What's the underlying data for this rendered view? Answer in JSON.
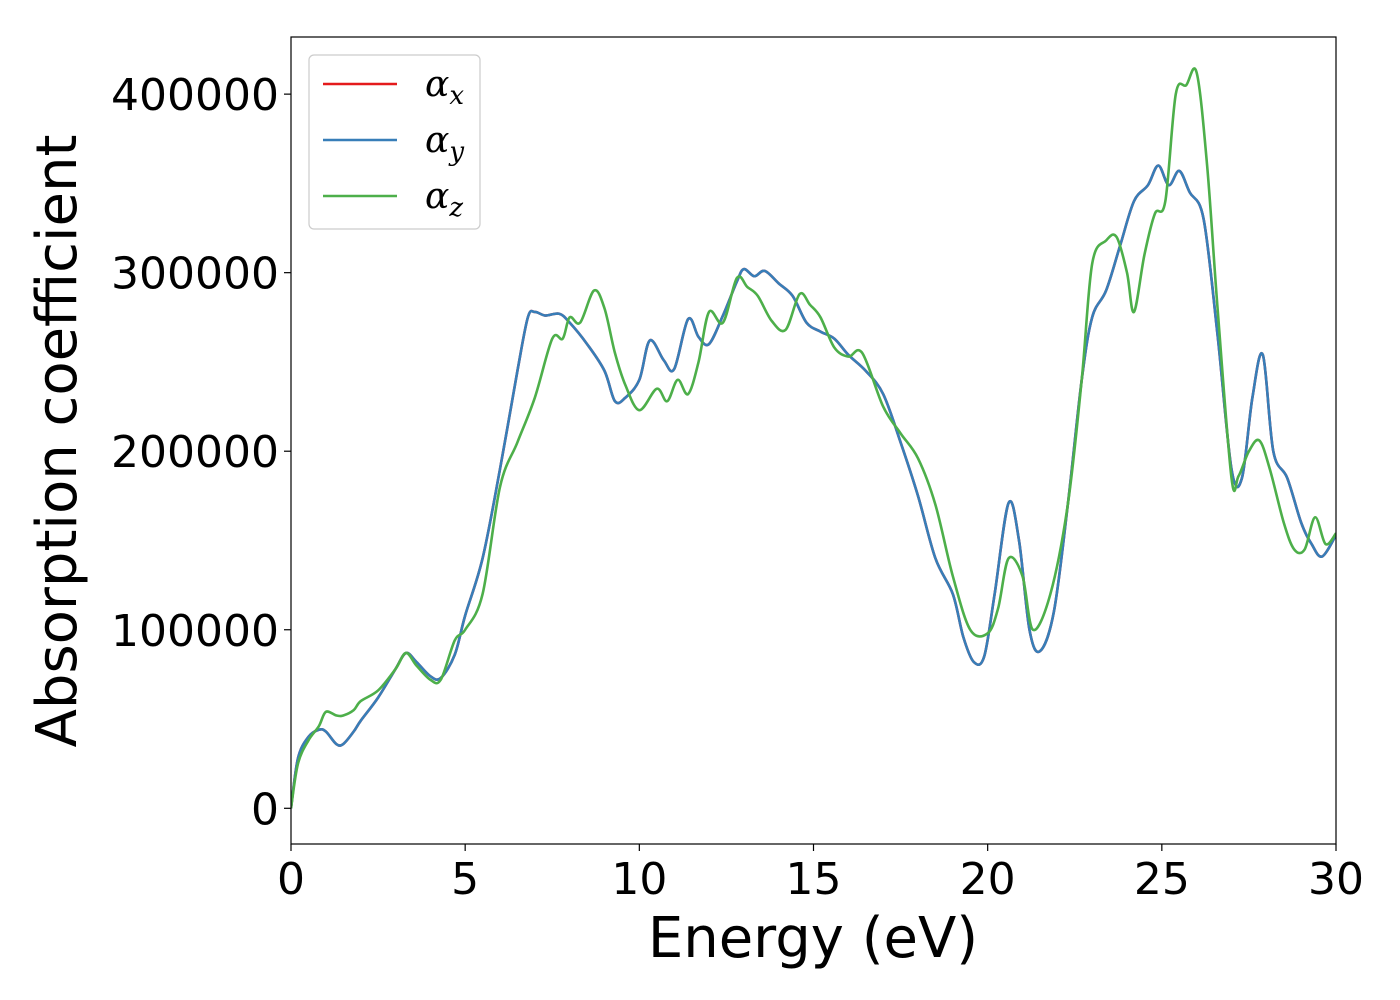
{
  "chart_data": {
    "type": "line",
    "xlabel": "Energy (eV)",
    "ylabel": "Absorption coefficient",
    "xlim": [
      0,
      30
    ],
    "ylim": [
      -20000,
      432000
    ],
    "xticks": [
      0,
      5,
      10,
      15,
      20,
      25,
      30
    ],
    "xtick_labels": [
      "0",
      "5",
      "10",
      "15",
      "20",
      "25",
      "30"
    ],
    "yticks": [
      0,
      100000,
      200000,
      300000,
      400000
    ],
    "ytick_labels": [
      "0",
      "100000",
      "200000",
      "300000",
      "400000"
    ],
    "grid": false,
    "legend": "top-left",
    "series": [
      {
        "name": "α_x",
        "legend_main": "α",
        "legend_sub": "x",
        "color": "#e41a1c",
        "x": [
          0,
          0.2,
          0.5,
          0.8,
          1.0,
          1.3,
          1.5,
          1.8,
          2.0,
          2.5,
          3.0,
          3.3,
          3.6,
          4.0,
          4.3,
          4.7,
          5.0,
          5.5,
          6.0,
          6.5,
          6.8,
          7.0,
          7.3,
          7.7,
          8.0,
          8.5,
          9.0,
          9.3,
          9.6,
          10.0,
          10.3,
          10.7,
          11.0,
          11.4,
          11.7,
          12.0,
          12.4,
          12.8,
          13.0,
          13.3,
          13.6,
          14.0,
          14.4,
          14.8,
          15.2,
          15.6,
          16.0,
          16.5,
          17.0,
          17.5,
          18.0,
          18.5,
          19.0,
          19.3,
          19.6,
          19.9,
          20.2,
          20.6,
          20.9,
          21.2,
          21.5,
          21.9,
          22.3,
          22.7,
          23.0,
          23.4,
          23.8,
          24.2,
          24.6,
          24.9,
          25.2,
          25.5,
          25.8,
          26.2,
          26.6,
          27.0,
          27.3,
          27.6,
          27.9,
          28.2,
          28.6,
          29.0,
          29.3,
          29.6,
          30.0
        ],
        "values": [
          0,
          28000,
          40000,
          44000,
          43000,
          36000,
          36000,
          43000,
          49000,
          62000,
          78000,
          87000,
          82000,
          74000,
          73000,
          86000,
          108000,
          140000,
          190000,
          245000,
          275000,
          278000,
          276000,
          277000,
          272000,
          260000,
          245000,
          228000,
          230000,
          240000,
          262000,
          251000,
          246000,
          274000,
          264000,
          260000,
          276000,
          295000,
          302000,
          298000,
          301000,
          294000,
          287000,
          272000,
          267000,
          263000,
          254000,
          245000,
          232000,
          205000,
          175000,
          140000,
          120000,
          96000,
          82000,
          85000,
          120000,
          171000,
          150000,
          100000,
          88000,
          110000,
          170000,
          240000,
          275000,
          290000,
          315000,
          340000,
          349000,
          360000,
          349000,
          357000,
          345000,
          330000,
          265000,
          190000,
          185000,
          230000,
          254000,
          200000,
          185000,
          160000,
          148000,
          141000,
          153000
        ]
      },
      {
        "name": "α_y",
        "legend_main": "α",
        "legend_sub": "y",
        "color": "#377eb8",
        "x": [
          0,
          0.2,
          0.5,
          0.8,
          1.0,
          1.3,
          1.5,
          1.8,
          2.0,
          2.5,
          3.0,
          3.3,
          3.6,
          4.0,
          4.3,
          4.7,
          5.0,
          5.5,
          6.0,
          6.5,
          6.8,
          7.0,
          7.3,
          7.7,
          8.0,
          8.5,
          9.0,
          9.3,
          9.6,
          10.0,
          10.3,
          10.7,
          11.0,
          11.4,
          11.7,
          12.0,
          12.4,
          12.8,
          13.0,
          13.3,
          13.6,
          14.0,
          14.4,
          14.8,
          15.2,
          15.6,
          16.0,
          16.5,
          17.0,
          17.5,
          18.0,
          18.5,
          19.0,
          19.3,
          19.6,
          19.9,
          20.2,
          20.6,
          20.9,
          21.2,
          21.5,
          21.9,
          22.3,
          22.7,
          23.0,
          23.4,
          23.8,
          24.2,
          24.6,
          24.9,
          25.2,
          25.5,
          25.8,
          26.2,
          26.6,
          27.0,
          27.3,
          27.6,
          27.9,
          28.2,
          28.6,
          29.0,
          29.3,
          29.6,
          30.0
        ],
        "values": [
          0,
          28000,
          40000,
          44000,
          43000,
          36000,
          36000,
          43000,
          49000,
          62000,
          78000,
          87000,
          82000,
          74000,
          73000,
          86000,
          108000,
          140000,
          190000,
          245000,
          275000,
          278000,
          276000,
          277000,
          272000,
          260000,
          245000,
          228000,
          230000,
          240000,
          262000,
          251000,
          246000,
          274000,
          264000,
          260000,
          276000,
          295000,
          302000,
          298000,
          301000,
          294000,
          287000,
          272000,
          267000,
          263000,
          254000,
          245000,
          232000,
          205000,
          175000,
          140000,
          120000,
          96000,
          82000,
          85000,
          120000,
          171000,
          150000,
          100000,
          88000,
          110000,
          170000,
          240000,
          275000,
          290000,
          315000,
          340000,
          349000,
          360000,
          349000,
          357000,
          345000,
          330000,
          265000,
          190000,
          185000,
          230000,
          254000,
          200000,
          185000,
          160000,
          148000,
          141000,
          153000
        ]
      },
      {
        "name": "α_z",
        "legend_main": "α",
        "legend_sub": "z",
        "color": "#4daf4a",
        "x": [
          0,
          0.2,
          0.5,
          0.8,
          1.0,
          1.3,
          1.5,
          1.8,
          2.0,
          2.5,
          3.0,
          3.3,
          3.6,
          4.0,
          4.3,
          4.7,
          5.0,
          5.5,
          6.0,
          6.5,
          7.0,
          7.5,
          7.8,
          8.0,
          8.3,
          8.7,
          9.0,
          9.3,
          9.6,
          10.0,
          10.5,
          10.8,
          11.1,
          11.4,
          11.7,
          12.0,
          12.4,
          12.8,
          13.1,
          13.4,
          13.8,
          14.2,
          14.6,
          14.9,
          15.2,
          15.6,
          16.0,
          16.4,
          17.0,
          17.5,
          18.0,
          18.5,
          19.0,
          19.5,
          20.0,
          20.3,
          20.6,
          21.0,
          21.3,
          21.8,
          22.3,
          22.7,
          23.0,
          23.4,
          23.7,
          24.0,
          24.2,
          24.5,
          24.8,
          25.1,
          25.4,
          25.7,
          26.0,
          26.3,
          26.6,
          27.0,
          27.2,
          27.5,
          27.8,
          28.1,
          28.5,
          28.8,
          29.1,
          29.4,
          29.7,
          30.0
        ],
        "values": [
          0,
          25000,
          38000,
          46000,
          54000,
          52000,
          52000,
          55000,
          60000,
          66000,
          78000,
          87000,
          80000,
          72000,
          72000,
          94000,
          100000,
          120000,
          180000,
          205000,
          230000,
          263000,
          263000,
          275000,
          272000,
          290000,
          280000,
          255000,
          237000,
          223000,
          235000,
          228000,
          240000,
          232000,
          250000,
          278000,
          272000,
          297000,
          292000,
          287000,
          273000,
          268000,
          288000,
          282000,
          275000,
          258000,
          253000,
          255000,
          225000,
          210000,
          196000,
          170000,
          130000,
          100000,
          98000,
          112000,
          140000,
          130000,
          100000,
          120000,
          170000,
          240000,
          305000,
          318000,
          320000,
          300000,
          278000,
          310000,
          333000,
          340000,
          400000,
          405000,
          412000,
          360000,
          280000,
          185000,
          186000,
          200000,
          206000,
          190000,
          160000,
          145000,
          145000,
          163000,
          148000,
          154000
        ]
      }
    ]
  }
}
